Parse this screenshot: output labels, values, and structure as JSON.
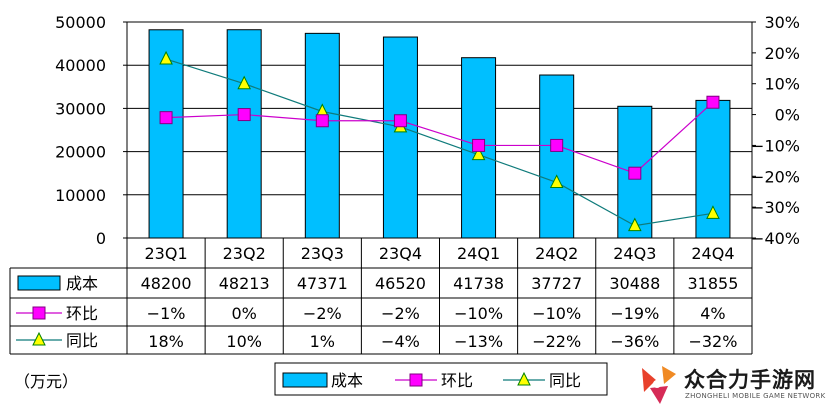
{
  "chart_data": {
    "type": "bar",
    "categories": [
      "23Q1",
      "23Q2",
      "23Q3",
      "23Q4",
      "24Q1",
      "24Q2",
      "24Q3",
      "24Q4"
    ],
    "series": [
      {
        "name": "成本",
        "type": "bar",
        "axis": "left",
        "values": [
          48200,
          48213,
          47371,
          46520,
          41738,
          37727,
          30488,
          31855
        ],
        "labels": [
          "48200",
          "48213",
          "47371",
          "46520",
          "41738",
          "37727",
          "30488",
          "31855"
        ],
        "color": "#00BFFF"
      },
      {
        "name": "环比",
        "type": "line",
        "axis": "right",
        "values": [
          -1,
          0,
          -2,
          -2,
          -10,
          -10,
          -19,
          4
        ],
        "labels": [
          "-1%",
          "0%",
          "-2%",
          "-2%",
          "-10%",
          "-10%",
          "-19%",
          "4%"
        ],
        "color": "#CC00CC"
      },
      {
        "name": "同比",
        "type": "line",
        "axis": "right",
        "values": [
          18,
          10,
          1,
          -4,
          -13,
          -22,
          -36,
          -32
        ],
        "labels": [
          "18%",
          "10%",
          "1%",
          "-4%",
          "-13%",
          "-22%",
          "-36%",
          "-32%"
        ],
        "color": "#0F7B7B"
      }
    ],
    "y_left": {
      "min": 0,
      "max": 50000,
      "ticks": [
        0,
        10000,
        20000,
        30000,
        40000,
        50000
      ],
      "tick_labels": [
        "0",
        "10000",
        "20000",
        "30000",
        "40000",
        "50000"
      ]
    },
    "y_right": {
      "min": -40,
      "max": 30,
      "ticks": [
        -40,
        -30,
        -20,
        -10,
        0,
        10,
        20,
        30
      ],
      "tick_labels": [
        "-40%",
        "-30%",
        "-20%",
        "-10%",
        "0%",
        "10%",
        "20%",
        "30%"
      ]
    },
    "grid": true,
    "legend": "bottom",
    "data_table": true,
    "unit_label": "（万元）"
  },
  "watermark": {
    "text": "众合力手游网",
    "subtext": "ZHONGHELI MOBILE GAME NETWORK"
  }
}
